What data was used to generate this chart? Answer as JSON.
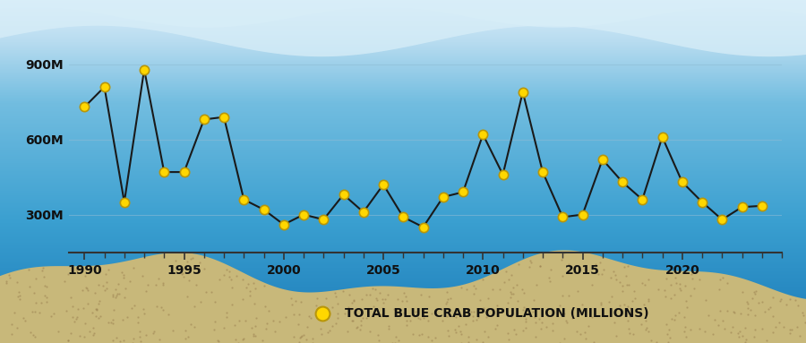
{
  "years": [
    1990,
    1991,
    1992,
    1993,
    1994,
    1995,
    1996,
    1997,
    1998,
    1999,
    2000,
    2001,
    2002,
    2003,
    2004,
    2005,
    2006,
    2007,
    2008,
    2009,
    2010,
    2011,
    2012,
    2013,
    2014,
    2015,
    2016,
    2017,
    2018,
    2019,
    2020,
    2021,
    2022,
    2023,
    2024
  ],
  "values": [
    730,
    810,
    350,
    880,
    470,
    470,
    680,
    690,
    360,
    320,
    260,
    300,
    280,
    380,
    310,
    420,
    290,
    250,
    370,
    390,
    620,
    460,
    790,
    470,
    290,
    300,
    520,
    430,
    360,
    610,
    430,
    350,
    280,
    330,
    335
  ],
  "ytick_labels": [
    "300M",
    "600M",
    "900M"
  ],
  "ytick_values": [
    300,
    600,
    900
  ],
  "xtick_labels": [
    "1990",
    "1995",
    "2000",
    "2005",
    "2010",
    "2015",
    "2020"
  ],
  "xtick_values": [
    1990,
    1995,
    2000,
    2005,
    2010,
    2015,
    2020
  ],
  "line_color": "#1a1a1a",
  "marker_color": "#FFD700",
  "marker_edge_color": "#b8960a",
  "grid_color": "#90bcd4",
  "sand_color": "#c8b87a",
  "sand_dot_color": "#9a8050",
  "legend_text": "TOTAL BLUE CRAB POPULATION (MILLIONS)",
  "tick_fontsize": 10,
  "legend_fontsize": 10,
  "xlim": [
    1989.2,
    2025.0
  ],
  "ylim": [
    150,
    1000
  ]
}
